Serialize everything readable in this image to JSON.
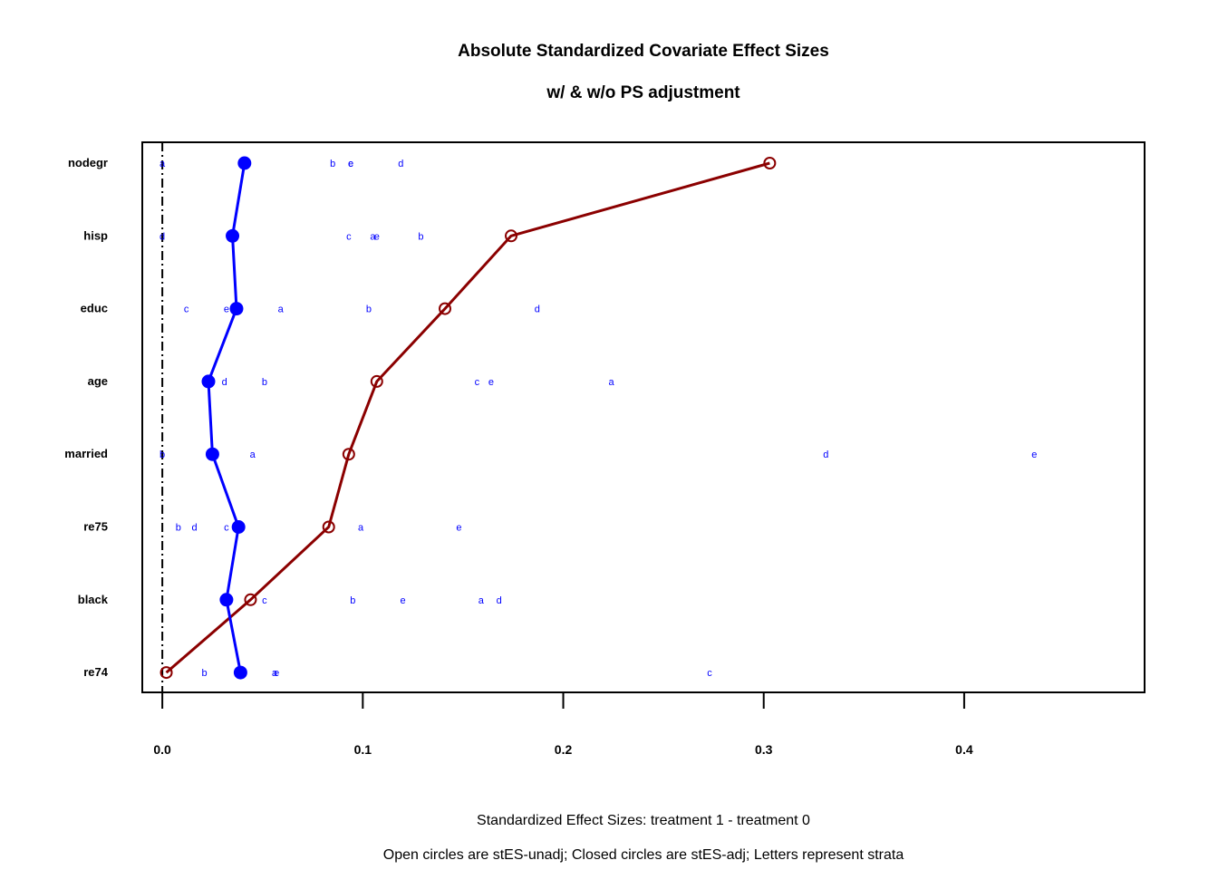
{
  "chart_data": {
    "type": "dot-line",
    "title": "Absolute Standardized Covariate Effect Sizes",
    "subtitle": "w/ & w/o PS adjustment",
    "xlabel": "Standardized Effect Sizes: treatment 1 - treatment  0",
    "footnote": "Open circles are stES-unadj; Closed circles are stES-adj; Letters represent strata",
    "xlim": [
      -0.01,
      0.49
    ],
    "xticks": [
      0.0,
      0.1,
      0.2,
      0.3,
      0.4
    ],
    "xtick_labels": [
      "0.0",
      "0.1",
      "0.2",
      "0.3",
      "0.4"
    ],
    "reference_line_x": 0.0,
    "covariates": [
      "nodegr",
      "hisp",
      "educ",
      "age",
      "married",
      "re75",
      "black",
      "re74"
    ],
    "series": [
      {
        "marker": "open-circle",
        "color": "#8b0000",
        "values": [
          0.303,
          0.174,
          0.141,
          0.107,
          0.093,
          0.083,
          0.044,
          0.002
        ]
      },
      {
        "marker": "closed-circle",
        "color": "#0000ff",
        "values": [
          0.041,
          0.035,
          0.037,
          0.023,
          0.025,
          0.038,
          0.032,
          0.039
        ]
      }
    ],
    "strata": {
      "nodegr": [
        [
          "a",
          0.0
        ],
        [
          "b",
          0.085
        ],
        [
          "c",
          0.094
        ],
        [
          "e",
          0.094
        ],
        [
          "d",
          0.119
        ]
      ],
      "hisp": [
        [
          "d",
          0.0
        ],
        [
          "c",
          0.093
        ],
        [
          "a",
          0.105
        ],
        [
          "e",
          0.107
        ],
        [
          "b",
          0.129
        ]
      ],
      "educ": [
        [
          "c",
          0.012
        ],
        [
          "e",
          0.032
        ],
        [
          "a",
          0.059
        ],
        [
          "b",
          0.103
        ],
        [
          "d",
          0.187
        ]
      ],
      "age": [
        [
          "d",
          0.031
        ],
        [
          "b",
          0.051
        ],
        [
          "c",
          0.157
        ],
        [
          "e",
          0.164
        ],
        [
          "a",
          0.224
        ]
      ],
      "married": [
        [
          "b",
          0.0
        ],
        [
          "a",
          0.045
        ],
        [
          "d",
          0.331
        ],
        [
          "e",
          0.435
        ]
      ],
      "re75": [
        [
          "b",
          0.008
        ],
        [
          "d",
          0.016
        ],
        [
          "c",
          0.032
        ],
        [
          "a",
          0.099
        ],
        [
          "e",
          0.148
        ]
      ],
      "black": [
        [
          "c",
          0.051
        ],
        [
          "b",
          0.095
        ],
        [
          "e",
          0.12
        ],
        [
          "a",
          0.159
        ],
        [
          "d",
          0.168
        ]
      ],
      "re74": [
        [
          "b",
          0.021
        ],
        [
          "a",
          0.056
        ],
        [
          "e",
          0.057
        ],
        [
          "c",
          0.273
        ]
      ]
    }
  }
}
